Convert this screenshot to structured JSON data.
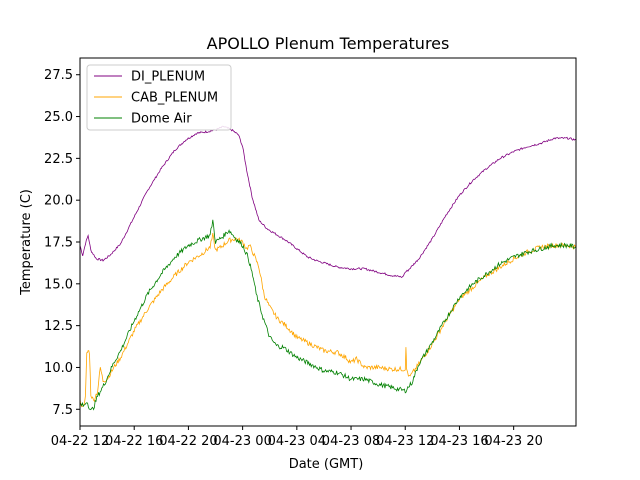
{
  "chart_data": {
    "type": "line",
    "title": "APOLLO Plenum Temperatures",
    "xlabel": "Date (GMT)",
    "ylabel": "Temperature (C)",
    "x_unit": "hours since 04-22 12:00 GMT",
    "xlim": [
      0,
      36.6
    ],
    "ylim": [
      6.5,
      28.5
    ],
    "grid": false,
    "legend_position": "top-left",
    "x_ticks": [
      {
        "value": 0,
        "label": "04-22 12"
      },
      {
        "value": 4,
        "label": "04-22 16"
      },
      {
        "value": 8,
        "label": "04-22 20"
      },
      {
        "value": 12,
        "label": "04-23 00"
      },
      {
        "value": 16,
        "label": "04-23 04"
      },
      {
        "value": 20,
        "label": "04-23 08"
      },
      {
        "value": 24,
        "label": "04-23 12"
      },
      {
        "value": 28,
        "label": "04-23 16"
      },
      {
        "value": 32,
        "label": "04-23 20"
      }
    ],
    "y_ticks": [
      {
        "value": 7.5,
        "label": "7.5"
      },
      {
        "value": 10,
        "label": "10.0"
      },
      {
        "value": 12.5,
        "label": "12.5"
      },
      {
        "value": 15,
        "label": "15.0"
      },
      {
        "value": 17.5,
        "label": "17.5"
      },
      {
        "value": 20,
        "label": "20.0"
      },
      {
        "value": 22.5,
        "label": "22.5"
      },
      {
        "value": 25,
        "label": "25.0"
      },
      {
        "value": 27.5,
        "label": "27.5"
      }
    ],
    "series": [
      {
        "name": "DI_PLENUM",
        "color": "#800080",
        "x": [
          0,
          0.2,
          0.4,
          0.6,
          0.8,
          1.2,
          1.7,
          2.2,
          3.0,
          4.0,
          5.0,
          6.0,
          7.0,
          7.8,
          8.6,
          9.4,
          10.0,
          10.6,
          11.2,
          11.7,
          12.0,
          12.3,
          12.7,
          13.2,
          13.8,
          14.4,
          15.2,
          16.0,
          16.8,
          17.4,
          18.2,
          19.0,
          20.0,
          21.0,
          22.0,
          23.0,
          23.8,
          24.0,
          24.2,
          25.0,
          26.0,
          27.0,
          28.0,
          29.0,
          30.0,
          31.0,
          32.0,
          33.0,
          34.0,
          35.0,
          36.0,
          36.6
        ],
        "y": [
          17.3,
          16.7,
          17.4,
          17.9,
          17.0,
          16.5,
          16.4,
          16.7,
          17.4,
          19.0,
          20.6,
          21.9,
          23.0,
          23.6,
          24.0,
          24.1,
          24.2,
          24.4,
          24.2,
          23.9,
          23.2,
          21.8,
          20.2,
          18.8,
          18.3,
          18.0,
          17.6,
          17.1,
          16.6,
          16.4,
          16.2,
          16.0,
          15.9,
          15.9,
          15.7,
          15.5,
          15.4,
          15.7,
          15.8,
          16.5,
          17.7,
          19.1,
          20.3,
          21.2,
          21.9,
          22.5,
          22.9,
          23.2,
          23.4,
          23.7,
          23.7,
          23.6
        ]
      },
      {
        "name": "CAB_PLENUM",
        "color": "#ffa500",
        "x": [
          0,
          0.2,
          0.4,
          0.5,
          0.6,
          0.7,
          0.8,
          1.0,
          1.3,
          1.5,
          1.7,
          2.0,
          2.5,
          3.0,
          4.0,
          5.0,
          6.0,
          7.0,
          8.0,
          9.0,
          9.6,
          9.8,
          10.0,
          10.4,
          11.0,
          11.5,
          12.0,
          12.3,
          12.5,
          12.8,
          13.2,
          13.6,
          14.0,
          14.6,
          15.2,
          16.0,
          17.0,
          18.0,
          19.0,
          19.6,
          20.0,
          20.4,
          21.0,
          22.0,
          23.0,
          24.0,
          24.05,
          24.1,
          24.3,
          25.0,
          26.0,
          27.0,
          28.0,
          29.0,
          30.0,
          31.0,
          32.0,
          33.0,
          34.0,
          35.0,
          36.0,
          36.6
        ],
        "y": [
          8.0,
          7.6,
          8.2,
          10.8,
          11.0,
          10.9,
          8.4,
          8.0,
          8.6,
          10.0,
          9.2,
          9.3,
          10.0,
          10.6,
          12.2,
          13.5,
          14.6,
          15.5,
          16.3,
          16.8,
          17.2,
          17.9,
          17.0,
          17.2,
          17.6,
          17.7,
          17.5,
          17.1,
          17.3,
          16.8,
          16.0,
          14.3,
          13.6,
          12.9,
          12.5,
          11.8,
          11.4,
          11.0,
          10.9,
          10.6,
          10.3,
          10.5,
          10.0,
          10.0,
          9.9,
          9.9,
          11.3,
          9.9,
          9.4,
          10.2,
          11.4,
          12.8,
          14.1,
          14.8,
          15.5,
          16.0,
          16.5,
          16.9,
          17.2,
          17.3,
          17.3,
          17.2
        ]
      },
      {
        "name": "Dome Air",
        "color": "#008000",
        "x": [
          0,
          0.3,
          0.5,
          0.8,
          1.0,
          1.3,
          1.8,
          2.5,
          3.0,
          4.0,
          5.0,
          6.0,
          7.0,
          8.0,
          9.0,
          9.6,
          9.8,
          10.0,
          10.5,
          11.0,
          11.5,
          12.0,
          12.4,
          12.8,
          13.0,
          13.5,
          14.0,
          14.5,
          15.0,
          16.0,
          17.0,
          18.0,
          19.0,
          20.0,
          21.0,
          22.0,
          23.0,
          24.0,
          24.5,
          25.0,
          26.0,
          27.0,
          28.0,
          29.0,
          30.0,
          31.0,
          32.0,
          33.0,
          34.0,
          35.0,
          36.0,
          36.6
        ],
        "y": [
          7.8,
          7.7,
          8.0,
          7.4,
          7.6,
          8.3,
          9.0,
          10.3,
          11.0,
          12.8,
          14.4,
          15.6,
          16.6,
          17.3,
          17.7,
          17.9,
          18.8,
          17.5,
          17.8,
          18.2,
          17.7,
          17.3,
          16.6,
          15.3,
          14.4,
          13.0,
          11.8,
          11.3,
          11.2,
          10.6,
          10.2,
          9.8,
          9.7,
          9.3,
          9.3,
          9.0,
          8.8,
          8.6,
          9.1,
          10.2,
          11.5,
          12.9,
          14.2,
          15.0,
          15.6,
          16.2,
          16.6,
          16.9,
          17.1,
          17.3,
          17.3,
          17.2
        ]
      }
    ]
  }
}
